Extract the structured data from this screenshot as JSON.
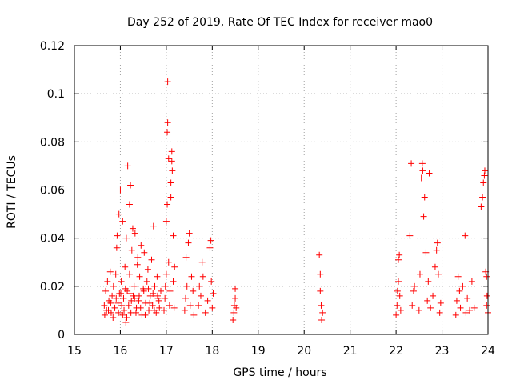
{
  "chart_data": {
    "type": "scatter",
    "title": "Day 252 of 2019, Rate Of TEC Index for receiver mao0",
    "xlabel": "GPS time / hours",
    "ylabel": "ROTI / TECUs",
    "xlim": [
      15,
      24
    ],
    "ylim": [
      0,
      0.12
    ],
    "xticks": [
      15,
      16,
      17,
      18,
      19,
      20,
      21,
      22,
      23,
      24
    ],
    "yticks": [
      0,
      0.02,
      0.04,
      0.06,
      0.08,
      0.1,
      0.12
    ],
    "xtick_labels": [
      "15",
      "16",
      "17",
      "18",
      "19",
      "20",
      "21",
      "22",
      "23",
      "24"
    ],
    "ytick_labels": [
      "0",
      "0.02",
      "0.04",
      "0.06",
      "0.08",
      "0.1",
      "0.12"
    ],
    "grid": true,
    "marker": "+",
    "color": "#ff0000",
    "series": [
      {
        "name": "ROTI",
        "points": [
          [
            15.65,
            0.012
          ],
          [
            15.68,
            0.018
          ],
          [
            15.7,
            0.01
          ],
          [
            15.72,
            0.022
          ],
          [
            15.75,
            0.014
          ],
          [
            15.78,
            0.026
          ],
          [
            15.8,
            0.009
          ],
          [
            15.82,
            0.016
          ],
          [
            15.85,
            0.02
          ],
          [
            15.88,
            0.011
          ],
          [
            15.9,
            0.025
          ],
          [
            15.92,
            0.036
          ],
          [
            15.93,
            0.041
          ],
          [
            15.95,
            0.013
          ],
          [
            15.97,
            0.05
          ],
          [
            15.98,
            0.017
          ],
          [
            16.0,
            0.06
          ],
          [
            16.02,
            0.022
          ],
          [
            16.05,
            0.008
          ],
          [
            16.05,
            0.047
          ],
          [
            16.07,
            0.015
          ],
          [
            16.1,
            0.028
          ],
          [
            16.12,
            0.005
          ],
          [
            16.13,
            0.04
          ],
          [
            16.15,
            0.018
          ],
          [
            16.16,
            0.07
          ],
          [
            16.18,
            0.012
          ],
          [
            16.2,
            0.054
          ],
          [
            16.2,
            0.025
          ],
          [
            16.22,
            0.062
          ],
          [
            16.23,
            0.009
          ],
          [
            16.25,
            0.035
          ],
          [
            16.27,
            0.044
          ],
          [
            16.28,
            0.016
          ],
          [
            16.3,
            0.02
          ],
          [
            16.32,
            0.042
          ],
          [
            16.35,
            0.011
          ],
          [
            16.37,
            0.029
          ],
          [
            16.38,
            0.032
          ],
          [
            16.4,
            0.014
          ],
          [
            16.42,
            0.024
          ],
          [
            16.45,
            0.037
          ],
          [
            16.47,
            0.008
          ],
          [
            16.5,
            0.019
          ],
          [
            16.52,
            0.034
          ],
          [
            16.55,
            0.013
          ],
          [
            16.58,
            0.022
          ],
          [
            16.6,
            0.027
          ],
          [
            16.62,
            0.01
          ],
          [
            16.65,
            0.016
          ],
          [
            16.68,
            0.031
          ],
          [
            16.7,
            0.012
          ],
          [
            16.72,
            0.045
          ],
          [
            16.75,
            0.02
          ],
          [
            16.78,
            0.009
          ],
          [
            16.8,
            0.024
          ],
          [
            16.82,
            0.015
          ],
          [
            16.85,
            0.011
          ],
          [
            16.88,
            0.018
          ],
          [
            15.66,
            0.008
          ],
          [
            15.74,
            0.01
          ],
          [
            15.84,
            0.007
          ],
          [
            15.96,
            0.009
          ],
          [
            16.03,
            0.012
          ],
          [
            16.08,
            0.01
          ],
          [
            16.14,
            0.007
          ],
          [
            16.24,
            0.014
          ],
          [
            16.34,
            0.009
          ],
          [
            16.44,
            0.011
          ],
          [
            16.54,
            0.008
          ],
          [
            16.64,
            0.013
          ],
          [
            16.74,
            0.01
          ],
          [
            16.84,
            0.014
          ],
          [
            15.79,
            0.013
          ],
          [
            15.91,
            0.015
          ],
          [
            16.01,
            0.017
          ],
          [
            16.11,
            0.019
          ],
          [
            16.21,
            0.017
          ],
          [
            16.31,
            0.015
          ],
          [
            16.41,
            0.016
          ],
          [
            16.51,
            0.018
          ],
          [
            16.61,
            0.019
          ],
          [
            16.71,
            0.017
          ],
          [
            16.81,
            0.016
          ],
          [
            16.95,
            0.01
          ],
          [
            16.97,
            0.015
          ],
          [
            16.98,
            0.02
          ],
          [
            17.0,
            0.025
          ],
          [
            17.0,
            0.047
          ],
          [
            17.02,
            0.054
          ],
          [
            17.02,
            0.084
          ],
          [
            17.03,
            0.088
          ],
          [
            17.03,
            0.105
          ],
          [
            17.05,
            0.073
          ],
          [
            17.05,
            0.03
          ],
          [
            17.07,
            0.012
          ],
          [
            17.08,
            0.018
          ],
          [
            17.1,
            0.057
          ],
          [
            17.1,
            0.063
          ],
          [
            17.12,
            0.072
          ],
          [
            17.12,
            0.076
          ],
          [
            17.13,
            0.068
          ],
          [
            17.15,
            0.041
          ],
          [
            17.15,
            0.022
          ],
          [
            17.17,
            0.011
          ],
          [
            17.18,
            0.028
          ],
          [
            17.4,
            0.01
          ],
          [
            17.42,
            0.015
          ],
          [
            17.43,
            0.032
          ],
          [
            17.45,
            0.02
          ],
          [
            17.48,
            0.038
          ],
          [
            17.5,
            0.042
          ],
          [
            17.52,
            0.012
          ],
          [
            17.55,
            0.024
          ],
          [
            17.58,
            0.018
          ],
          [
            17.6,
            0.008
          ],
          [
            17.7,
            0.012
          ],
          [
            17.72,
            0.02
          ],
          [
            17.75,
            0.016
          ],
          [
            17.78,
            0.03
          ],
          [
            17.8,
            0.024
          ],
          [
            17.85,
            0.009
          ],
          [
            17.9,
            0.014
          ],
          [
            17.95,
            0.036
          ],
          [
            17.97,
            0.039
          ],
          [
            17.98,
            0.022
          ],
          [
            18.0,
            0.011
          ],
          [
            18.02,
            0.017
          ],
          [
            18.45,
            0.006
          ],
          [
            18.47,
            0.009
          ],
          [
            18.48,
            0.012
          ],
          [
            18.5,
            0.015
          ],
          [
            18.5,
            0.019
          ],
          [
            18.52,
            0.011
          ],
          [
            20.33,
            0.033
          ],
          [
            20.35,
            0.025
          ],
          [
            20.35,
            0.018
          ],
          [
            20.37,
            0.012
          ],
          [
            20.38,
            0.006
          ],
          [
            20.4,
            0.009
          ],
          [
            22.0,
            0.008
          ],
          [
            22.02,
            0.012
          ],
          [
            22.03,
            0.018
          ],
          [
            22.05,
            0.022
          ],
          [
            22.05,
            0.031
          ],
          [
            22.07,
            0.033
          ],
          [
            22.08,
            0.016
          ],
          [
            22.1,
            0.01
          ],
          [
            22.3,
            0.041
          ],
          [
            22.33,
            0.071
          ],
          [
            22.35,
            0.012
          ],
          [
            22.38,
            0.018
          ],
          [
            22.4,
            0.02
          ],
          [
            22.5,
            0.01
          ],
          [
            22.52,
            0.025
          ],
          [
            22.55,
            0.065
          ],
          [
            22.57,
            0.071
          ],
          [
            22.58,
            0.068
          ],
          [
            22.6,
            0.049
          ],
          [
            22.62,
            0.057
          ],
          [
            22.65,
            0.034
          ],
          [
            22.68,
            0.014
          ],
          [
            22.7,
            0.022
          ],
          [
            22.72,
            0.067
          ],
          [
            22.75,
            0.011
          ],
          [
            22.8,
            0.016
          ],
          [
            22.85,
            0.028
          ],
          [
            22.88,
            0.035
          ],
          [
            22.9,
            0.038
          ],
          [
            22.92,
            0.025
          ],
          [
            22.95,
            0.009
          ],
          [
            22.97,
            0.013
          ],
          [
            23.3,
            0.008
          ],
          [
            23.32,
            0.014
          ],
          [
            23.35,
            0.024
          ],
          [
            23.38,
            0.018
          ],
          [
            23.4,
            0.011
          ],
          [
            23.45,
            0.02
          ],
          [
            23.5,
            0.041
          ],
          [
            23.52,
            0.009
          ],
          [
            23.55,
            0.015
          ],
          [
            23.6,
            0.01
          ],
          [
            23.65,
            0.022
          ],
          [
            23.7,
            0.011
          ],
          [
            23.85,
            0.053
          ],
          [
            23.88,
            0.057
          ],
          [
            23.9,
            0.063
          ],
          [
            23.92,
            0.066
          ],
          [
            23.93,
            0.068
          ],
          [
            23.95,
            0.026
          ],
          [
            23.97,
            0.024
          ],
          [
            23.97,
            0.012
          ],
          [
            23.98,
            0.016
          ],
          [
            24.0,
            0.009
          ]
        ]
      }
    ]
  }
}
